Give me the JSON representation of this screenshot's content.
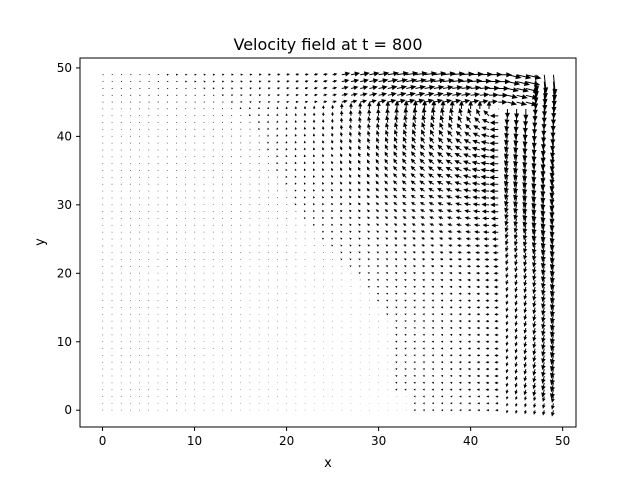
{
  "chart_data": {
    "type": "quiver",
    "title": "Velocity field at t = 800",
    "xlabel": "x",
    "ylabel": "y",
    "xlim": [
      -2.45,
      51.45
    ],
    "ylim": [
      -2.45,
      51.45
    ],
    "xticks": [
      0,
      10,
      20,
      30,
      40,
      50
    ],
    "yticks": [
      0,
      10,
      20,
      30,
      40,
      50
    ],
    "grid": false,
    "legend": "none",
    "arrow_color": "#000000",
    "field": {
      "description_of_grid": "arrows on a regular grid covering x = 0..49 and y = 0..49",
      "x_range": [
        0,
        49
      ],
      "y_range": [
        0,
        49
      ],
      "grid_step": 1,
      "flow": "clockwise lid-driven cavity-like vortex centred near (43, 44); strongest along the right wall (flow downward at x ≈ 45–49) and across the top (flow toward +x near y ≈ 45–48), weak flow in the left half",
      "vortex_center": [
        43,
        44
      ],
      "max_speed_display_units": 3.0
    }
  }
}
